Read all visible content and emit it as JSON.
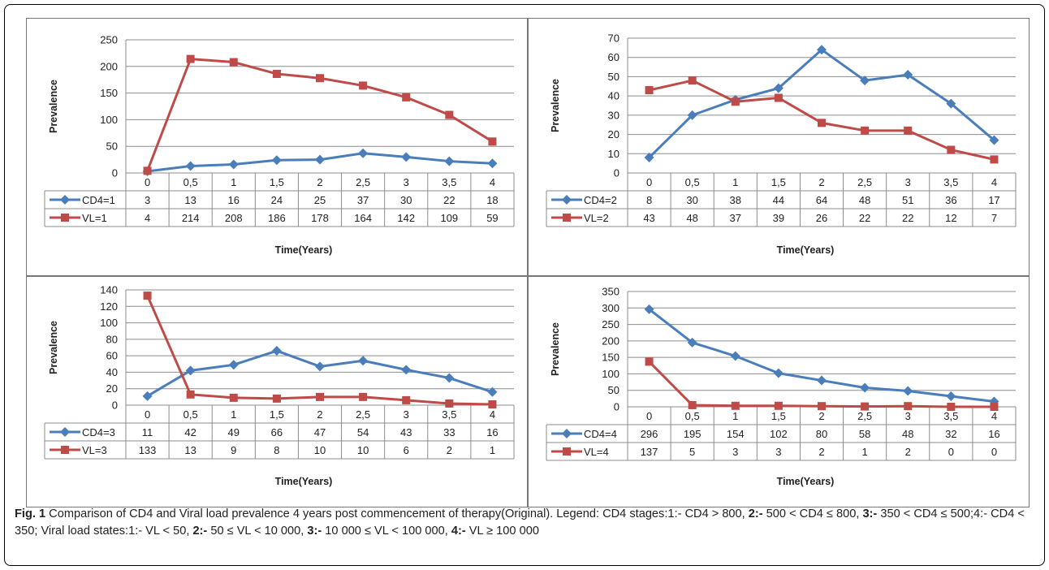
{
  "chart_data": [
    {
      "type": "line",
      "ylabel": "Prevalence",
      "xlabel": "Time(Years)",
      "categories": [
        "0",
        "0,5",
        "1",
        "1,5",
        "2",
        "2,5",
        "3",
        "3,5",
        "4"
      ],
      "ylim": [
        0,
        250
      ],
      "ystep": 50,
      "yticks": [
        "0",
        "50",
        "100",
        "150",
        "200",
        "250"
      ],
      "series": [
        {
          "name": "CD4=1",
          "color": "#4a7ebb",
          "marker": "diamond",
          "values": [
            3,
            13,
            16,
            24,
            25,
            37,
            30,
            22,
            18
          ]
        },
        {
          "name": "VL=1",
          "color": "#be4b48",
          "marker": "square",
          "values": [
            4,
            214,
            208,
            186,
            178,
            164,
            142,
            109,
            59
          ]
        }
      ]
    },
    {
      "type": "line",
      "ylabel": "Prevalence",
      "xlabel": "Time(Years)",
      "categories": [
        "0",
        "0,5",
        "1",
        "1,5",
        "2",
        "2,5",
        "3",
        "3,5",
        "4"
      ],
      "ylim": [
        0,
        70
      ],
      "ystep": 10,
      "yticks": [
        "0",
        "10",
        "20",
        "30",
        "40",
        "50",
        "60",
        "70"
      ],
      "series": [
        {
          "name": "CD4=2",
          "color": "#4a7ebb",
          "marker": "diamond",
          "values": [
            8,
            30,
            38,
            44,
            64,
            48,
            51,
            36,
            17
          ]
        },
        {
          "name": "VL=2",
          "color": "#be4b48",
          "marker": "square",
          "values": [
            43,
            48,
            37,
            39,
            26,
            22,
            22,
            12,
            7
          ]
        }
      ]
    },
    {
      "type": "line",
      "ylabel": "Prevalence",
      "xlabel": "Time(Years)",
      "categories": [
        "0",
        "0,5",
        "1",
        "1,5",
        "2",
        "2,5",
        "3",
        "3,5",
        "4"
      ],
      "ylim": [
        0,
        140
      ],
      "ystep": 20,
      "yticks": [
        "0",
        "20",
        "40",
        "60",
        "80",
        "100",
        "120",
        "140"
      ],
      "series": [
        {
          "name": "CD4=3",
          "color": "#4a7ebb",
          "marker": "diamond",
          "values": [
            11,
            42,
            49,
            66,
            47,
            54,
            43,
            33,
            16
          ]
        },
        {
          "name": "VL=3",
          "color": "#be4b48",
          "marker": "square",
          "values": [
            133,
            13,
            9,
            8,
            10,
            10,
            6,
            2,
            1
          ]
        }
      ]
    },
    {
      "type": "line",
      "ylabel": "Prevalence",
      "xlabel": "Time(Years)",
      "categories": [
        "0",
        "0,5",
        "1",
        "1,5",
        "2",
        "2,5",
        "3",
        "3,5",
        "4"
      ],
      "ylim": [
        0,
        350
      ],
      "ystep": 50,
      "yticks": [
        "0",
        "50",
        "100",
        "150",
        "200",
        "250",
        "300",
        "350"
      ],
      "series": [
        {
          "name": "CD4=4",
          "color": "#4a7ebb",
          "marker": "diamond",
          "values": [
            296,
            195,
            154,
            102,
            80,
            58,
            48,
            32,
            16
          ]
        },
        {
          "name": "VL=4",
          "color": "#be4b48",
          "marker": "square",
          "values": [
            137,
            5,
            3,
            3,
            2,
            1,
            2,
            0,
            0
          ]
        }
      ]
    }
  ],
  "caption": {
    "label": "Fig. 1",
    "parts": [
      {
        "t": " Comparison of CD4 and Viral load prevalence 4 years post commencement of therapy(Original). Legend: CD4 stages:1:- CD4 > 800, ",
        "b": false
      },
      {
        "t": "2:-",
        "b": true
      },
      {
        "t": " 500 < CD4 ≤ 800, ",
        "b": false
      },
      {
        "t": "3:-",
        "b": true
      },
      {
        "t": " 350 < CD4 ≤ 500;4:- CD4 < 350; Viral load states:1:- VL < 50, ",
        "b": false
      },
      {
        "t": "2:-",
        "b": true
      },
      {
        "t": " 50 ≤ VL < 10 000, ",
        "b": false
      },
      {
        "t": "3:-",
        "b": true
      },
      {
        "t": " 10 000 ≤ VL < 100 000, ",
        "b": false
      },
      {
        "t": "4:-",
        "b": true
      },
      {
        "t": " VL ≥ 100 000",
        "b": false
      }
    ]
  }
}
